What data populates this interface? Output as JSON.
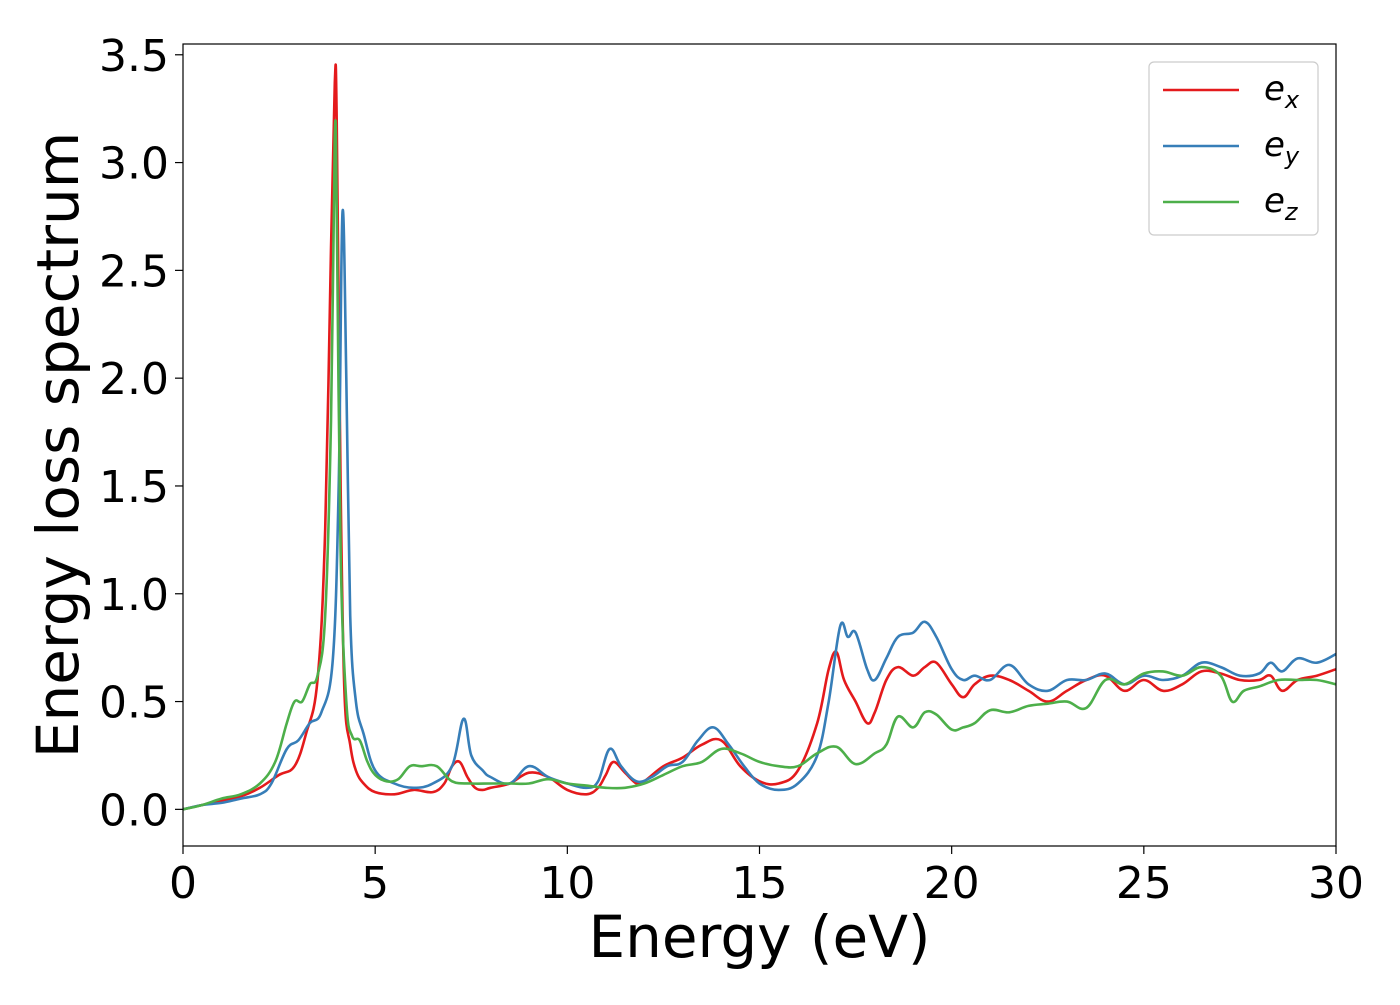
{
  "chart_data": {
    "type": "line",
    "title": "",
    "xlabel": "Energy (eV)",
    "ylabel": "Energy loss spectrum",
    "xlim": [
      0,
      30
    ],
    "ylim": [
      -0.17,
      3.55
    ],
    "xticks": [
      0,
      5,
      10,
      15,
      20,
      25,
      30
    ],
    "xtick_labels": [
      "0",
      "5",
      "10",
      "15",
      "20",
      "25",
      "30"
    ],
    "yticks": [
      0.0,
      0.5,
      1.0,
      1.5,
      2.0,
      2.5,
      3.0,
      3.5
    ],
    "ytick_labels": [
      "0.0",
      "0.5",
      "1.0",
      "1.5",
      "2.0",
      "2.5",
      "3.0",
      "3.5"
    ],
    "grid": false,
    "legend_position": "top-right",
    "series": [
      {
        "name": "e",
        "subscript": "x",
        "color": "#e41a1c",
        "x": [
          0,
          0.5,
          1,
          1.5,
          2,
          2.5,
          2.9,
          3.2,
          3.5,
          3.7,
          3.85,
          3.95,
          4.0,
          4.1,
          4.2,
          4.35,
          4.5,
          4.7,
          5.0,
          5.5,
          6.0,
          6.5,
          6.8,
          7.0,
          7.2,
          7.4,
          7.6,
          7.8,
          8.0,
          8.5,
          9.0,
          9.5,
          10.0,
          10.5,
          10.8,
          11.0,
          11.2,
          11.5,
          11.8,
          12.0,
          12.5,
          13.0,
          13.5,
          14.0,
          14.5,
          15.0,
          15.5,
          16.0,
          16.5,
          16.8,
          17.0,
          17.2,
          17.5,
          17.8,
          18.0,
          18.3,
          18.6,
          19.0,
          19.3,
          19.6,
          20.0,
          20.3,
          20.6,
          21.0,
          21.5,
          22.0,
          22.5,
          23.0,
          23.5,
          24.0,
          24.5,
          25.0,
          25.5,
          26.0,
          26.5,
          27.0,
          27.5,
          28.0,
          28.3,
          28.6,
          29.0,
          29.5,
          30.0
        ],
        "y": [
          0,
          0.02,
          0.04,
          0.06,
          0.1,
          0.16,
          0.2,
          0.35,
          0.6,
          1.3,
          2.6,
          3.37,
          3.2,
          1.5,
          0.55,
          0.3,
          0.18,
          0.12,
          0.08,
          0.07,
          0.09,
          0.08,
          0.12,
          0.2,
          0.22,
          0.15,
          0.1,
          0.09,
          0.1,
          0.12,
          0.17,
          0.15,
          0.09,
          0.07,
          0.1,
          0.16,
          0.22,
          0.17,
          0.12,
          0.13,
          0.2,
          0.24,
          0.3,
          0.32,
          0.2,
          0.13,
          0.12,
          0.18,
          0.4,
          0.65,
          0.73,
          0.6,
          0.5,
          0.4,
          0.45,
          0.6,
          0.66,
          0.62,
          0.66,
          0.68,
          0.58,
          0.52,
          0.58,
          0.62,
          0.6,
          0.55,
          0.5,
          0.55,
          0.6,
          0.62,
          0.55,
          0.6,
          0.55,
          0.58,
          0.64,
          0.63,
          0.6,
          0.6,
          0.62,
          0.55,
          0.6,
          0.62,
          0.65
        ]
      },
      {
        "name": "e",
        "subscript": "y",
        "color": "#377eb8",
        "x": [
          0,
          0.5,
          1,
          1.5,
          2,
          2.3,
          2.7,
          3.0,
          3.3,
          3.6,
          3.9,
          4.05,
          4.15,
          4.25,
          4.35,
          4.5,
          4.7,
          5.0,
          5.5,
          6.0,
          6.5,
          7.0,
          7.3,
          7.5,
          7.8,
          8.0,
          8.5,
          9.0,
          9.5,
          10.0,
          10.5,
          10.8,
          11.1,
          11.4,
          11.8,
          12.2,
          12.6,
          13.0,
          13.4,
          13.8,
          14.2,
          14.6,
          15.0,
          15.5,
          16.0,
          16.5,
          16.8,
          17.1,
          17.3,
          17.5,
          17.8,
          18.0,
          18.3,
          18.6,
          19.0,
          19.3,
          19.6,
          20.0,
          20.3,
          20.6,
          21.0,
          21.5,
          22.0,
          22.5,
          23.0,
          23.5,
          24.0,
          24.5,
          25.0,
          25.5,
          26.0,
          26.5,
          27.0,
          27.5,
          28.0,
          28.3,
          28.6,
          29.0,
          29.5,
          30.0
        ],
        "y": [
          0,
          0.02,
          0.03,
          0.05,
          0.07,
          0.12,
          0.28,
          0.32,
          0.4,
          0.45,
          0.7,
          1.5,
          2.77,
          2.0,
          0.9,
          0.5,
          0.35,
          0.18,
          0.12,
          0.1,
          0.12,
          0.2,
          0.42,
          0.25,
          0.18,
          0.15,
          0.12,
          0.2,
          0.15,
          0.12,
          0.1,
          0.13,
          0.28,
          0.2,
          0.13,
          0.15,
          0.2,
          0.22,
          0.32,
          0.38,
          0.3,
          0.2,
          0.12,
          0.09,
          0.12,
          0.25,
          0.5,
          0.85,
          0.8,
          0.82,
          0.65,
          0.6,
          0.7,
          0.8,
          0.82,
          0.87,
          0.8,
          0.65,
          0.6,
          0.62,
          0.6,
          0.67,
          0.58,
          0.55,
          0.6,
          0.6,
          0.63,
          0.58,
          0.62,
          0.6,
          0.62,
          0.68,
          0.66,
          0.62,
          0.63,
          0.68,
          0.64,
          0.7,
          0.68,
          0.72
        ]
      },
      {
        "name": "e",
        "subscript": "z",
        "color": "#4daf4a",
        "x": [
          0,
          0.5,
          1,
          1.5,
          2,
          2.4,
          2.7,
          2.9,
          3.1,
          3.3,
          3.5,
          3.7,
          3.85,
          3.95,
          4.0,
          4.1,
          4.25,
          4.4,
          4.6,
          4.8,
          5.0,
          5.3,
          5.6,
          5.9,
          6.2,
          6.6,
          7.0,
          7.5,
          8.0,
          8.5,
          9.0,
          9.5,
          10.0,
          10.5,
          11.0,
          11.5,
          12.0,
          12.5,
          13.0,
          13.5,
          14.0,
          14.5,
          15.0,
          15.5,
          16.0,
          16.5,
          17.0,
          17.5,
          18.0,
          18.3,
          18.6,
          19.0,
          19.3,
          19.6,
          20.0,
          20.3,
          20.6,
          21.0,
          21.5,
          22.0,
          22.5,
          23.0,
          23.5,
          24.0,
          24.5,
          25.0,
          25.5,
          26.0,
          26.5,
          27.0,
          27.3,
          27.6,
          28.0,
          28.5,
          29.0,
          29.5,
          30.0
        ],
        "y": [
          0,
          0.02,
          0.05,
          0.07,
          0.12,
          0.22,
          0.4,
          0.5,
          0.5,
          0.58,
          0.62,
          0.9,
          1.8,
          3.12,
          2.8,
          1.2,
          0.5,
          0.34,
          0.32,
          0.22,
          0.16,
          0.13,
          0.14,
          0.2,
          0.2,
          0.2,
          0.13,
          0.12,
          0.12,
          0.12,
          0.12,
          0.14,
          0.12,
          0.11,
          0.1,
          0.1,
          0.12,
          0.16,
          0.2,
          0.22,
          0.28,
          0.26,
          0.22,
          0.2,
          0.2,
          0.26,
          0.29,
          0.21,
          0.26,
          0.3,
          0.43,
          0.38,
          0.45,
          0.44,
          0.37,
          0.38,
          0.4,
          0.46,
          0.45,
          0.48,
          0.49,
          0.5,
          0.47,
          0.6,
          0.58,
          0.63,
          0.64,
          0.62,
          0.66,
          0.62,
          0.5,
          0.55,
          0.57,
          0.6,
          0.6,
          0.6,
          0.58
        ]
      }
    ]
  }
}
